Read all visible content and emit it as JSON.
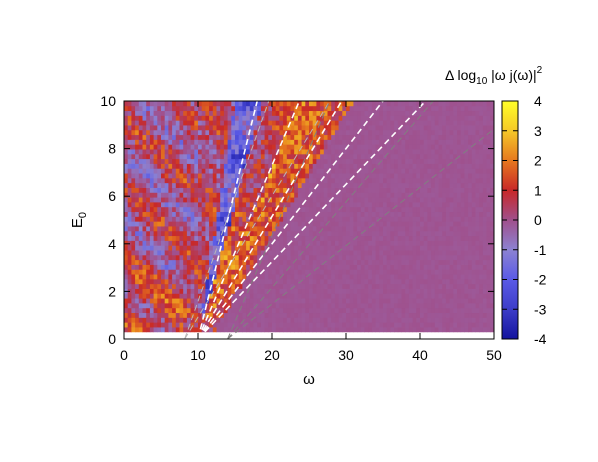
{
  "chart_data": {
    "type": "heatmap",
    "title": "",
    "xlabel": "ω",
    "ylabel_base": "E",
    "ylabel_sub": "0",
    "xlim": [
      0,
      50
    ],
    "ylim": [
      0,
      10
    ],
    "xticks": [
      "0",
      "10",
      "20",
      "30",
      "40",
      "50"
    ],
    "yticks": [
      "0",
      "2",
      "4",
      "6",
      "8",
      "10"
    ],
    "colorbar": {
      "title_prefix": "Δ log",
      "title_sub": "10",
      "title_suffix": " |ω j(ω)|",
      "title_sup": "2",
      "range": [
        -4,
        4
      ],
      "ticks": [
        "-4",
        "-3",
        "-2",
        "-1",
        "0",
        "1",
        "2",
        "3",
        "4"
      ],
      "colors": [
        "#14149e",
        "#5a5ae6",
        "#8c82d2",
        "#a0508c",
        "#c82828",
        "#e6781e",
        "#f5c828",
        "#ffff28"
      ]
    },
    "data_region": {
      "x": [
        0,
        50
      ],
      "y": [
        0.3,
        10
      ]
    },
    "uniform_region": {
      "value": -0.1,
      "description_color": "#a0508c"
    },
    "dashed_lines": [
      {
        "x0": 8.2,
        "slope": 0.88,
        "color": "#b8b8b8",
        "width": 1.0
      },
      {
        "x0": 8.2,
        "slope": 0.51,
        "color": "#b8b8b8",
        "width": 1.0
      },
      {
        "x0": 10.0,
        "slope": 1.25,
        "color": "#ffffff",
        "width": 1.6
      },
      {
        "x0": 10.0,
        "slope": 0.73,
        "color": "#ffffff",
        "width": 1.6
      },
      {
        "x0": 10.0,
        "slope": 0.515,
        "color": "#ffffff",
        "width": 1.6
      },
      {
        "x0": 10.0,
        "slope": 0.4,
        "color": "#ffffff",
        "width": 1.6
      },
      {
        "x0": 10.0,
        "slope": 0.325,
        "color": "#ffffff",
        "width": 1.6
      },
      {
        "x0": 14.0,
        "slope": 0.725,
        "color": "#808080",
        "width": 1.0
      },
      {
        "x0": 14.0,
        "slope": 0.36,
        "color": "#808080",
        "width": 1.0
      },
      {
        "x0": 14.0,
        "slope": 0.245,
        "color": "#808080",
        "width": 1.0
      }
    ]
  }
}
